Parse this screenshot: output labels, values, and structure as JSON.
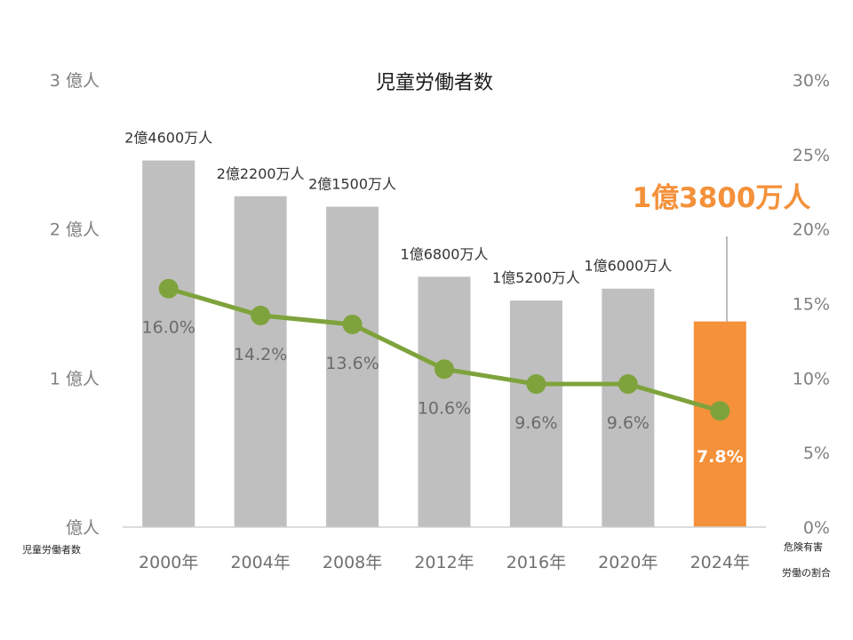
{
  "chart_data": {
    "type": "bar",
    "title": "児童労働者数",
    "categories": [
      "2000年",
      "2004年",
      "2008年",
      "2012年",
      "2016年",
      "2020年",
      "2024年"
    ],
    "series": [
      {
        "kind": "bar",
        "values": [
          246,
          222,
          215,
          168,
          152,
          160,
          138
        ],
        "unit": "百万人",
        "labels": [
          "2億4600万人",
          "2億2200万人",
          "2億1500万人",
          "1億6800万人",
          "1億5200万人",
          "1億6000万人",
          "1億3800万人"
        ],
        "colors": [
          "#bfbfbf",
          "#bfbfbf",
          "#bfbfbf",
          "#bfbfbf",
          "#bfbfbf",
          "#bfbfbf",
          "#f4913a"
        ]
      },
      {
        "kind": "line",
        "axis": "right",
        "values": [
          16.0,
          14.2,
          13.6,
          10.6,
          9.6,
          9.6,
          7.8
        ],
        "labels": [
          "16.0%",
          "14.2%",
          "13.6%",
          "10.6%",
          "9.6%",
          "9.6%",
          "7.8%"
        ],
        "color": "#7fa33c"
      }
    ],
    "y_left": {
      "name": "児童労働者数",
      "range": [
        0,
        300
      ],
      "ticks": [
        {
          "value": 0,
          "label": "億人"
        },
        {
          "value": 100,
          "label": "1 億人"
        },
        {
          "value": 200,
          "label": "2 億人"
        },
        {
          "value": 300,
          "label": "3 億人"
        }
      ]
    },
    "y_right": {
      "name_lines": [
        "危険有害",
        "労働の割合"
      ],
      "range": [
        0,
        30
      ],
      "ticks": [
        {
          "value": 0,
          "label": "0%"
        },
        {
          "value": 5,
          "label": "5%"
        },
        {
          "value": 10,
          "label": "10%"
        },
        {
          "value": 15,
          "label": "15%"
        },
        {
          "value": 20,
          "label": "20%"
        },
        {
          "value": 25,
          "label": "25%"
        },
        {
          "value": 30,
          "label": "30%"
        }
      ]
    },
    "callout": "1億3800万人",
    "highlight_index": 6,
    "grid": false
  }
}
